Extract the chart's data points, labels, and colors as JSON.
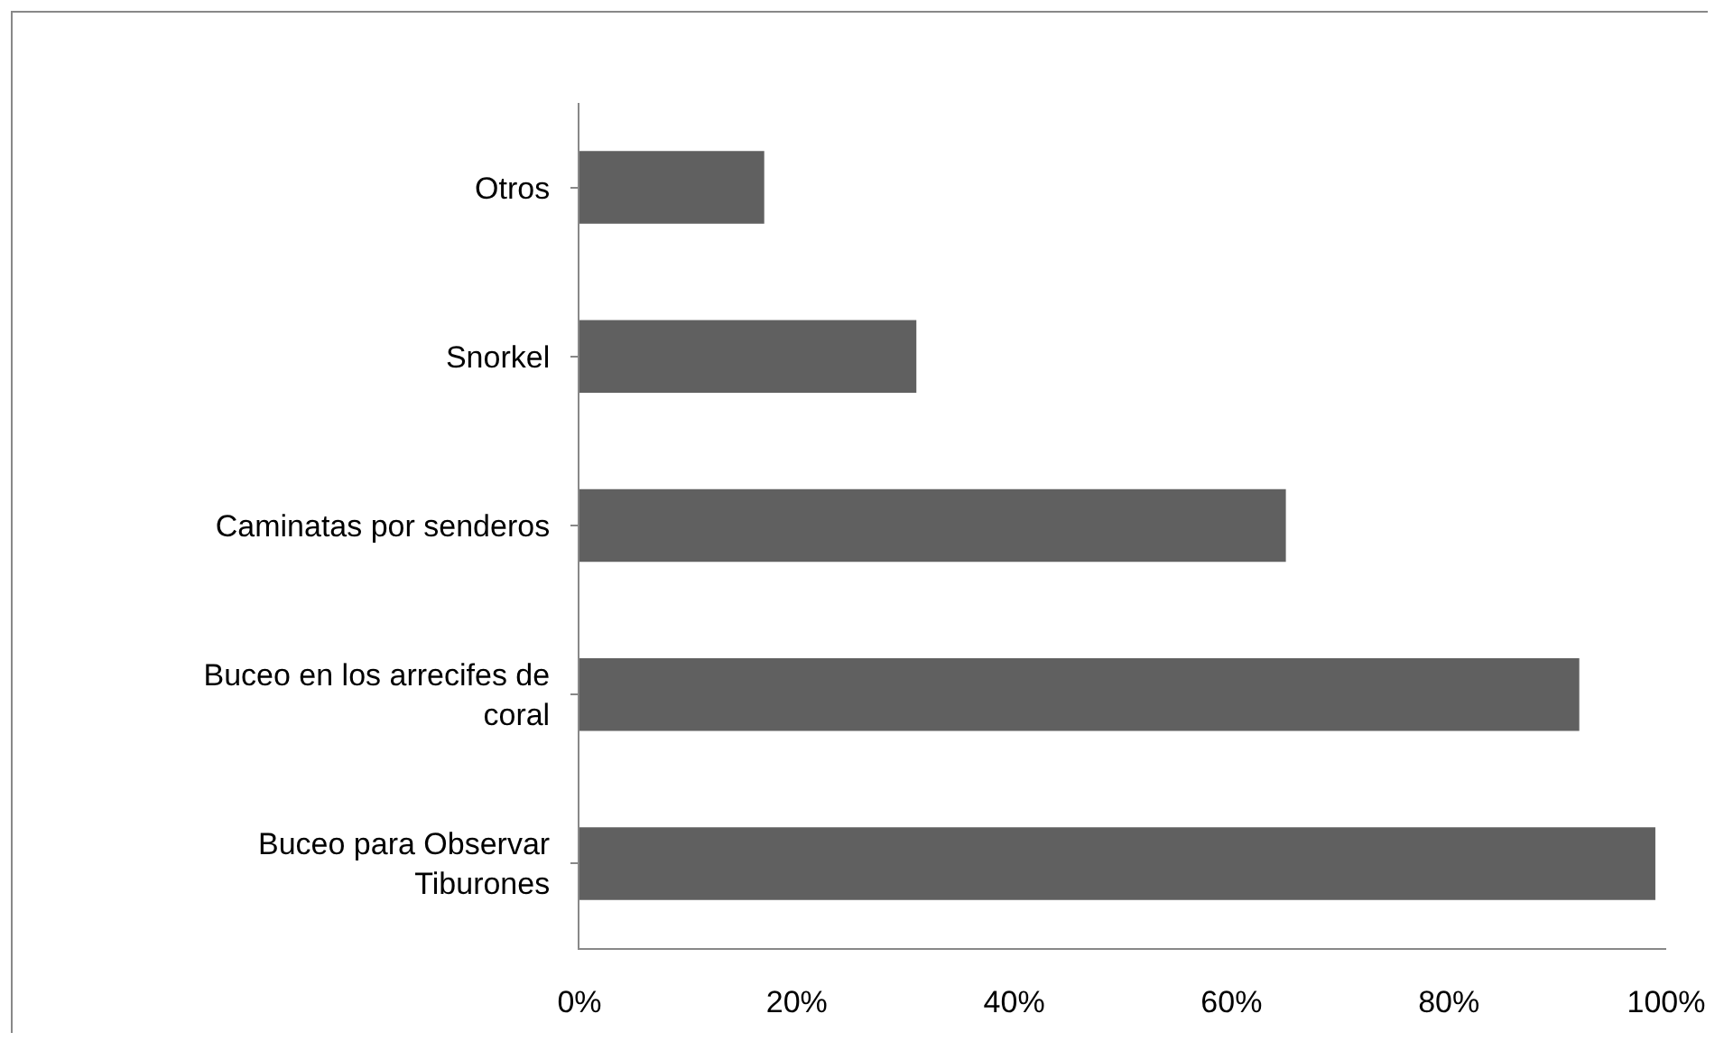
{
  "chart_data": {
    "type": "bar",
    "orientation": "horizontal",
    "categories": [
      "Otros",
      "Snorkel",
      "Caminatas por senderos",
      "Buceo en los arrecifes de coral",
      "Buceo para Observar Tiburones"
    ],
    "values": [
      17,
      31,
      65,
      92,
      99
    ],
    "color": "#606060",
    "xlim": [
      0,
      100
    ],
    "xticks": [
      {
        "value": 0,
        "label": "0%"
      },
      {
        "value": 20,
        "label": "20%"
      },
      {
        "value": 40,
        "label": "40%"
      },
      {
        "value": 60,
        "label": "60%"
      },
      {
        "value": 80,
        "label": "80%"
      },
      {
        "value": 100,
        "label": "100%"
      }
    ],
    "grid": false,
    "legend": false
  }
}
